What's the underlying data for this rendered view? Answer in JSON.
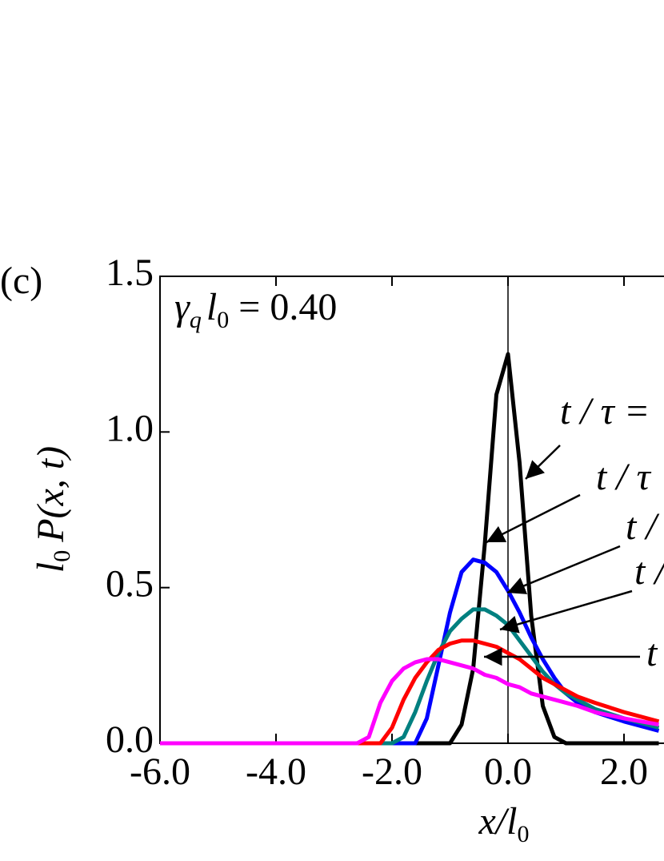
{
  "chart_data": {
    "type": "line",
    "panel_label": "(c)",
    "y_label": [
      "l",
      "0",
      "P(x, t)"
    ],
    "x_label": [
      "x/l",
      "0"
    ],
    "annotation": [
      "γ",
      "q",
      "l",
      "0",
      " = 0.40"
    ],
    "arrow_labels": [
      "t / τ =",
      "t / τ",
      "t /",
      "t /",
      "t"
    ],
    "xlim": [
      -6,
      6
    ],
    "ylim": [
      0,
      1.5
    ],
    "xticks": [
      {
        "value": -6,
        "label": "-6.0"
      },
      {
        "value": -4,
        "label": "-4.0"
      },
      {
        "value": -2,
        "label": "-2.0"
      },
      {
        "value": 0,
        "label": "0.0"
      },
      {
        "value": 2,
        "label": "2.0"
      }
    ],
    "yticks": [
      {
        "value": 0,
        "label": "0.0"
      },
      {
        "value": 0.5,
        "label": "0.5"
      },
      {
        "value": 1,
        "label": "1.0"
      },
      {
        "value": 1.5,
        "label": "1.5"
      }
    ],
    "vlines": [
      0
    ],
    "x": [
      -6,
      -2.6,
      -2.4,
      -2.2,
      -2.0,
      -1.8,
      -1.6,
      -1.4,
      -1.2,
      -1.0,
      -0.8,
      -0.6,
      -0.4,
      -0.2,
      0,
      0.2,
      0.4,
      0.6,
      0.8,
      1.0,
      1.2,
      1.5,
      2.0,
      2.6
    ],
    "series": [
      {
        "color": "#000000",
        "values": [
          0,
          0,
          0,
          0,
          0,
          0,
          0,
          0,
          0,
          0,
          0.06,
          0.24,
          0.64,
          1.12,
          1.25,
          0.9,
          0.41,
          0.12,
          0.02,
          0,
          0,
          0,
          0,
          0
        ]
      },
      {
        "color": "#0000ff",
        "values": [
          0,
          0,
          0,
          0,
          0,
          0,
          0,
          0.08,
          0.25,
          0.42,
          0.55,
          0.59,
          0.58,
          0.55,
          0.49,
          0.42,
          0.34,
          0.27,
          0.21,
          0.16,
          0.13,
          0.1,
          0.07,
          0.04
        ]
      },
      {
        "color": "#008080",
        "values": [
          0,
          0,
          0,
          0,
          0,
          0.02,
          0.1,
          0.2,
          0.29,
          0.36,
          0.4,
          0.43,
          0.43,
          0.41,
          0.38,
          0.33,
          0.28,
          0.23,
          0.19,
          0.16,
          0.14,
          0.11,
          0.08,
          0.05
        ]
      },
      {
        "color": "#ff0000",
        "values": [
          0,
          0,
          0,
          0,
          0.05,
          0.14,
          0.21,
          0.26,
          0.3,
          0.32,
          0.33,
          0.33,
          0.32,
          0.31,
          0.29,
          0.27,
          0.24,
          0.21,
          0.19,
          0.17,
          0.15,
          0.13,
          0.1,
          0.07
        ]
      },
      {
        "color": "#ff00ff",
        "values": [
          0,
          0,
          0.02,
          0.13,
          0.2,
          0.24,
          0.26,
          0.27,
          0.27,
          0.26,
          0.25,
          0.24,
          0.22,
          0.21,
          0.19,
          0.18,
          0.16,
          0.15,
          0.14,
          0.13,
          0.12,
          0.1,
          0.08,
          0.06
        ]
      }
    ]
  }
}
